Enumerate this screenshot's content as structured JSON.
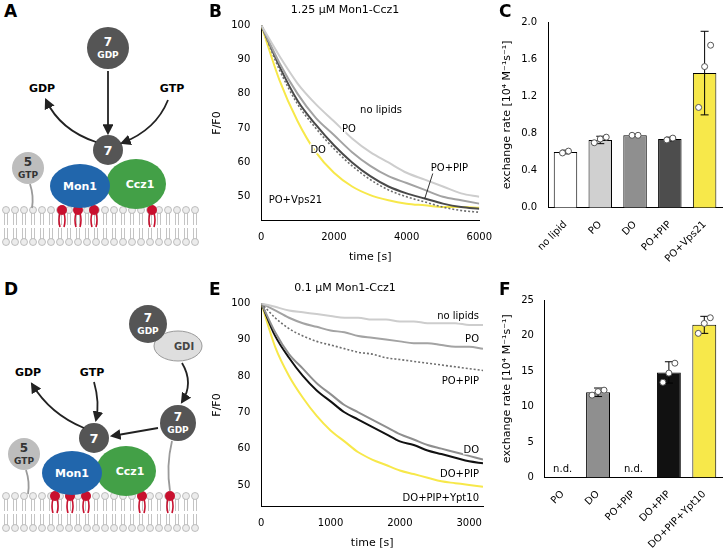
{
  "diagrams": [
    {
      "panel": "A",
      "rab7_cytosolic": {
        "number": "7",
        "nucleotide": "GDP"
      },
      "released": "GDP",
      "bound": "GTP",
      "rab7": "7",
      "rab5": {
        "number": "5",
        "nucleotide": "GTP"
      },
      "subunits": [
        "Mon1",
        "Ccz1"
      ]
    },
    {
      "panel": "D",
      "rab7_cytosolic": {
        "number": "7",
        "nucleotide": "GDP"
      },
      "gdi": "GDI",
      "rab7_membrane": {
        "number": "7",
        "nucleotide": "GDP"
      },
      "released": "GDP",
      "bound": "GTP",
      "rab7": "7",
      "rab5": {
        "number": "5",
        "nucleotide": "GTP"
      },
      "subunits": [
        "Mon1",
        "Ccz1"
      ]
    }
  ],
  "chart_data": [
    {
      "panel": "B",
      "type": "line",
      "title": "1.25 µM Mon1-Ccz1",
      "x_label": "time [s]",
      "y_label": "F/F0",
      "x": [
        0,
        500,
        1000,
        1500,
        2000,
        2500,
        3000,
        3500,
        4000,
        4500,
        5000,
        5500,
        6000
      ],
      "series": [
        {
          "name": "no lipids",
          "color": "#cdcdcd",
          "line_style": "solid",
          "values": [
            100,
            91,
            83,
            77,
            72,
            67,
            63,
            60,
            57,
            55,
            53,
            51,
            50
          ]
        },
        {
          "name": "PO",
          "color": "#a3a3a3",
          "line_style": "solid",
          "values": [
            100,
            89,
            80,
            73,
            68,
            63,
            59,
            56,
            54,
            52,
            50,
            49,
            48
          ]
        },
        {
          "name": "DO",
          "color": "#6e6e6e",
          "line_style": "dotted",
          "values": [
            100,
            87,
            77,
            70,
            64,
            59,
            55,
            52,
            50,
            48.5,
            47,
            46,
            45.5
          ]
        },
        {
          "name": "PO+PIP",
          "color": "#4a4a4a",
          "line_style": "solid",
          "values": [
            100,
            88,
            78,
            71,
            65,
            60,
            56,
            53,
            51,
            49.5,
            48,
            47,
            46.5
          ]
        },
        {
          "name": "PO+Vps21",
          "color": "#f7e84a",
          "line_style": "solid",
          "values": [
            100,
            84,
            72,
            63,
            57,
            53,
            50.5,
            49,
            48,
            47.5,
            47,
            47,
            46.8
          ]
        }
      ],
      "xlim": [
        0,
        6000
      ],
      "xticks": [
        0,
        2000,
        4000,
        6000
      ],
      "ylim": [
        43,
        100
      ],
      "yticks": [
        50,
        60,
        70,
        80,
        90,
        100
      ],
      "grid": false
    },
    {
      "panel": "C",
      "type": "bar",
      "y_label": "exchange rate [10⁴ M⁻¹s⁻¹]",
      "categories": [
        "no lipid",
        "PO",
        "DO",
        "PO+PIP",
        "PO+Vps21"
      ],
      "values": [
        0.6,
        0.73,
        0.78,
        0.74,
        1.45
      ],
      "errors": [
        0.02,
        0.04,
        0.01,
        0.02,
        0.45
      ],
      "points": [
        [
          0.59,
          0.61
        ],
        [
          0.7,
          0.74,
          0.76
        ],
        [
          0.78,
          0.78
        ],
        [
          0.73,
          0.75
        ],
        [
          1.08,
          1.52,
          1.75
        ]
      ],
      "colors": [
        "#ffffff",
        "#d0d0d0",
        "#8f8f8f",
        "#4d4d4d",
        "#f7e84a"
      ],
      "ylim": [
        0,
        2
      ],
      "yticks": [
        {
          "value": 0,
          "label": "0.0"
        },
        0.4,
        0.8,
        1.2,
        1.6,
        {
          "value": 2,
          "label": "2.0"
        }
      ],
      "grid": false
    },
    {
      "panel": "E",
      "type": "line",
      "title": "0.1 µM Mon1-Ccz1",
      "x_label": "time [s]",
      "y_label": "F/F0",
      "x": [
        0,
        200,
        400,
        600,
        800,
        1000,
        1200,
        1400,
        1600,
        1800,
        2000,
        2200,
        2400,
        2600,
        2800,
        3000,
        3200
      ],
      "series": [
        {
          "name": "no lipids",
          "color": "#cdcdcd",
          "line_style": "solid",
          "values": [
            100,
            99,
            98,
            97.5,
            97,
            96.5,
            96,
            96,
            95.5,
            95.5,
            95,
            95,
            94.5,
            94.5,
            94.5,
            94,
            94
          ]
        },
        {
          "name": "PO",
          "color": "#a3a3a3",
          "line_style": "solid",
          "values": [
            100,
            98,
            96,
            94.5,
            93.5,
            92.5,
            92,
            91,
            90.5,
            90,
            89.5,
            89,
            89,
            88.5,
            88,
            88,
            87.5
          ]
        },
        {
          "name": "PO+PIP",
          "color": "#6e6e6e",
          "line_style": "dotted",
          "values": [
            100,
            96,
            93,
            91,
            89.5,
            88.5,
            87.5,
            86.5,
            86,
            85,
            84.5,
            84,
            83.5,
            83,
            82.5,
            82,
            81.5
          ]
        },
        {
          "name": "DO",
          "color": "#8f8f8f",
          "line_style": "solid",
          "values": [
            100,
            92,
            86,
            82,
            78,
            75,
            72,
            70,
            68,
            66,
            64,
            62.5,
            61,
            60,
            59,
            58,
            57
          ]
        },
        {
          "name": "DO+PIP",
          "color": "#111111",
          "line_style": "solid",
          "values": [
            100,
            91,
            85,
            80,
            76,
            73,
            70,
            68,
            66,
            64,
            62,
            61,
            59.5,
            58.5,
            57.5,
            56.5,
            56
          ]
        },
        {
          "name": "DO+PIP+Ypt10",
          "color": "#f7e84a",
          "line_style": "solid",
          "values": [
            100,
            88,
            80,
            74,
            69,
            65,
            62,
            59,
            57,
            55.5,
            54,
            53,
            52,
            51,
            50.5,
            50,
            49.5
          ]
        }
      ],
      "xlim": [
        0,
        3200
      ],
      "xticks": [
        0,
        1000,
        2000,
        3000
      ],
      "ylim": [
        44,
        100
      ],
      "yticks": [
        50,
        60,
        70,
        80,
        90,
        100
      ],
      "grid": false
    },
    {
      "panel": "F",
      "type": "bar",
      "y_label": "exchange rate [10⁴ M⁻¹s⁻¹]",
      "categories": [
        "PO",
        "DO",
        "PO+PIP",
        "DO+PIP",
        "DO+PIP+Ypt10"
      ],
      "values": [
        null,
        12,
        null,
        14.8,
        21.5
      ],
      "value_labels": [
        "n.d.",
        null,
        "n.d.",
        null,
        null
      ],
      "errors": [
        null,
        0.6,
        null,
        1.5,
        1.2
      ],
      "points": [
        null,
        [
          11.6,
          12.1,
          12.3
        ],
        null,
        [
          13.4,
          14.7,
          16.1
        ],
        [
          20.3,
          21.7,
          22.5
        ]
      ],
      "colors": [
        "#d0d0d0",
        "#8f8f8f",
        "#4d4d4d",
        "#111111",
        "#f7e84a"
      ],
      "ylim": [
        0,
        25
      ],
      "yticks": [
        0,
        5,
        10,
        15,
        20,
        25
      ],
      "grid": false
    }
  ]
}
